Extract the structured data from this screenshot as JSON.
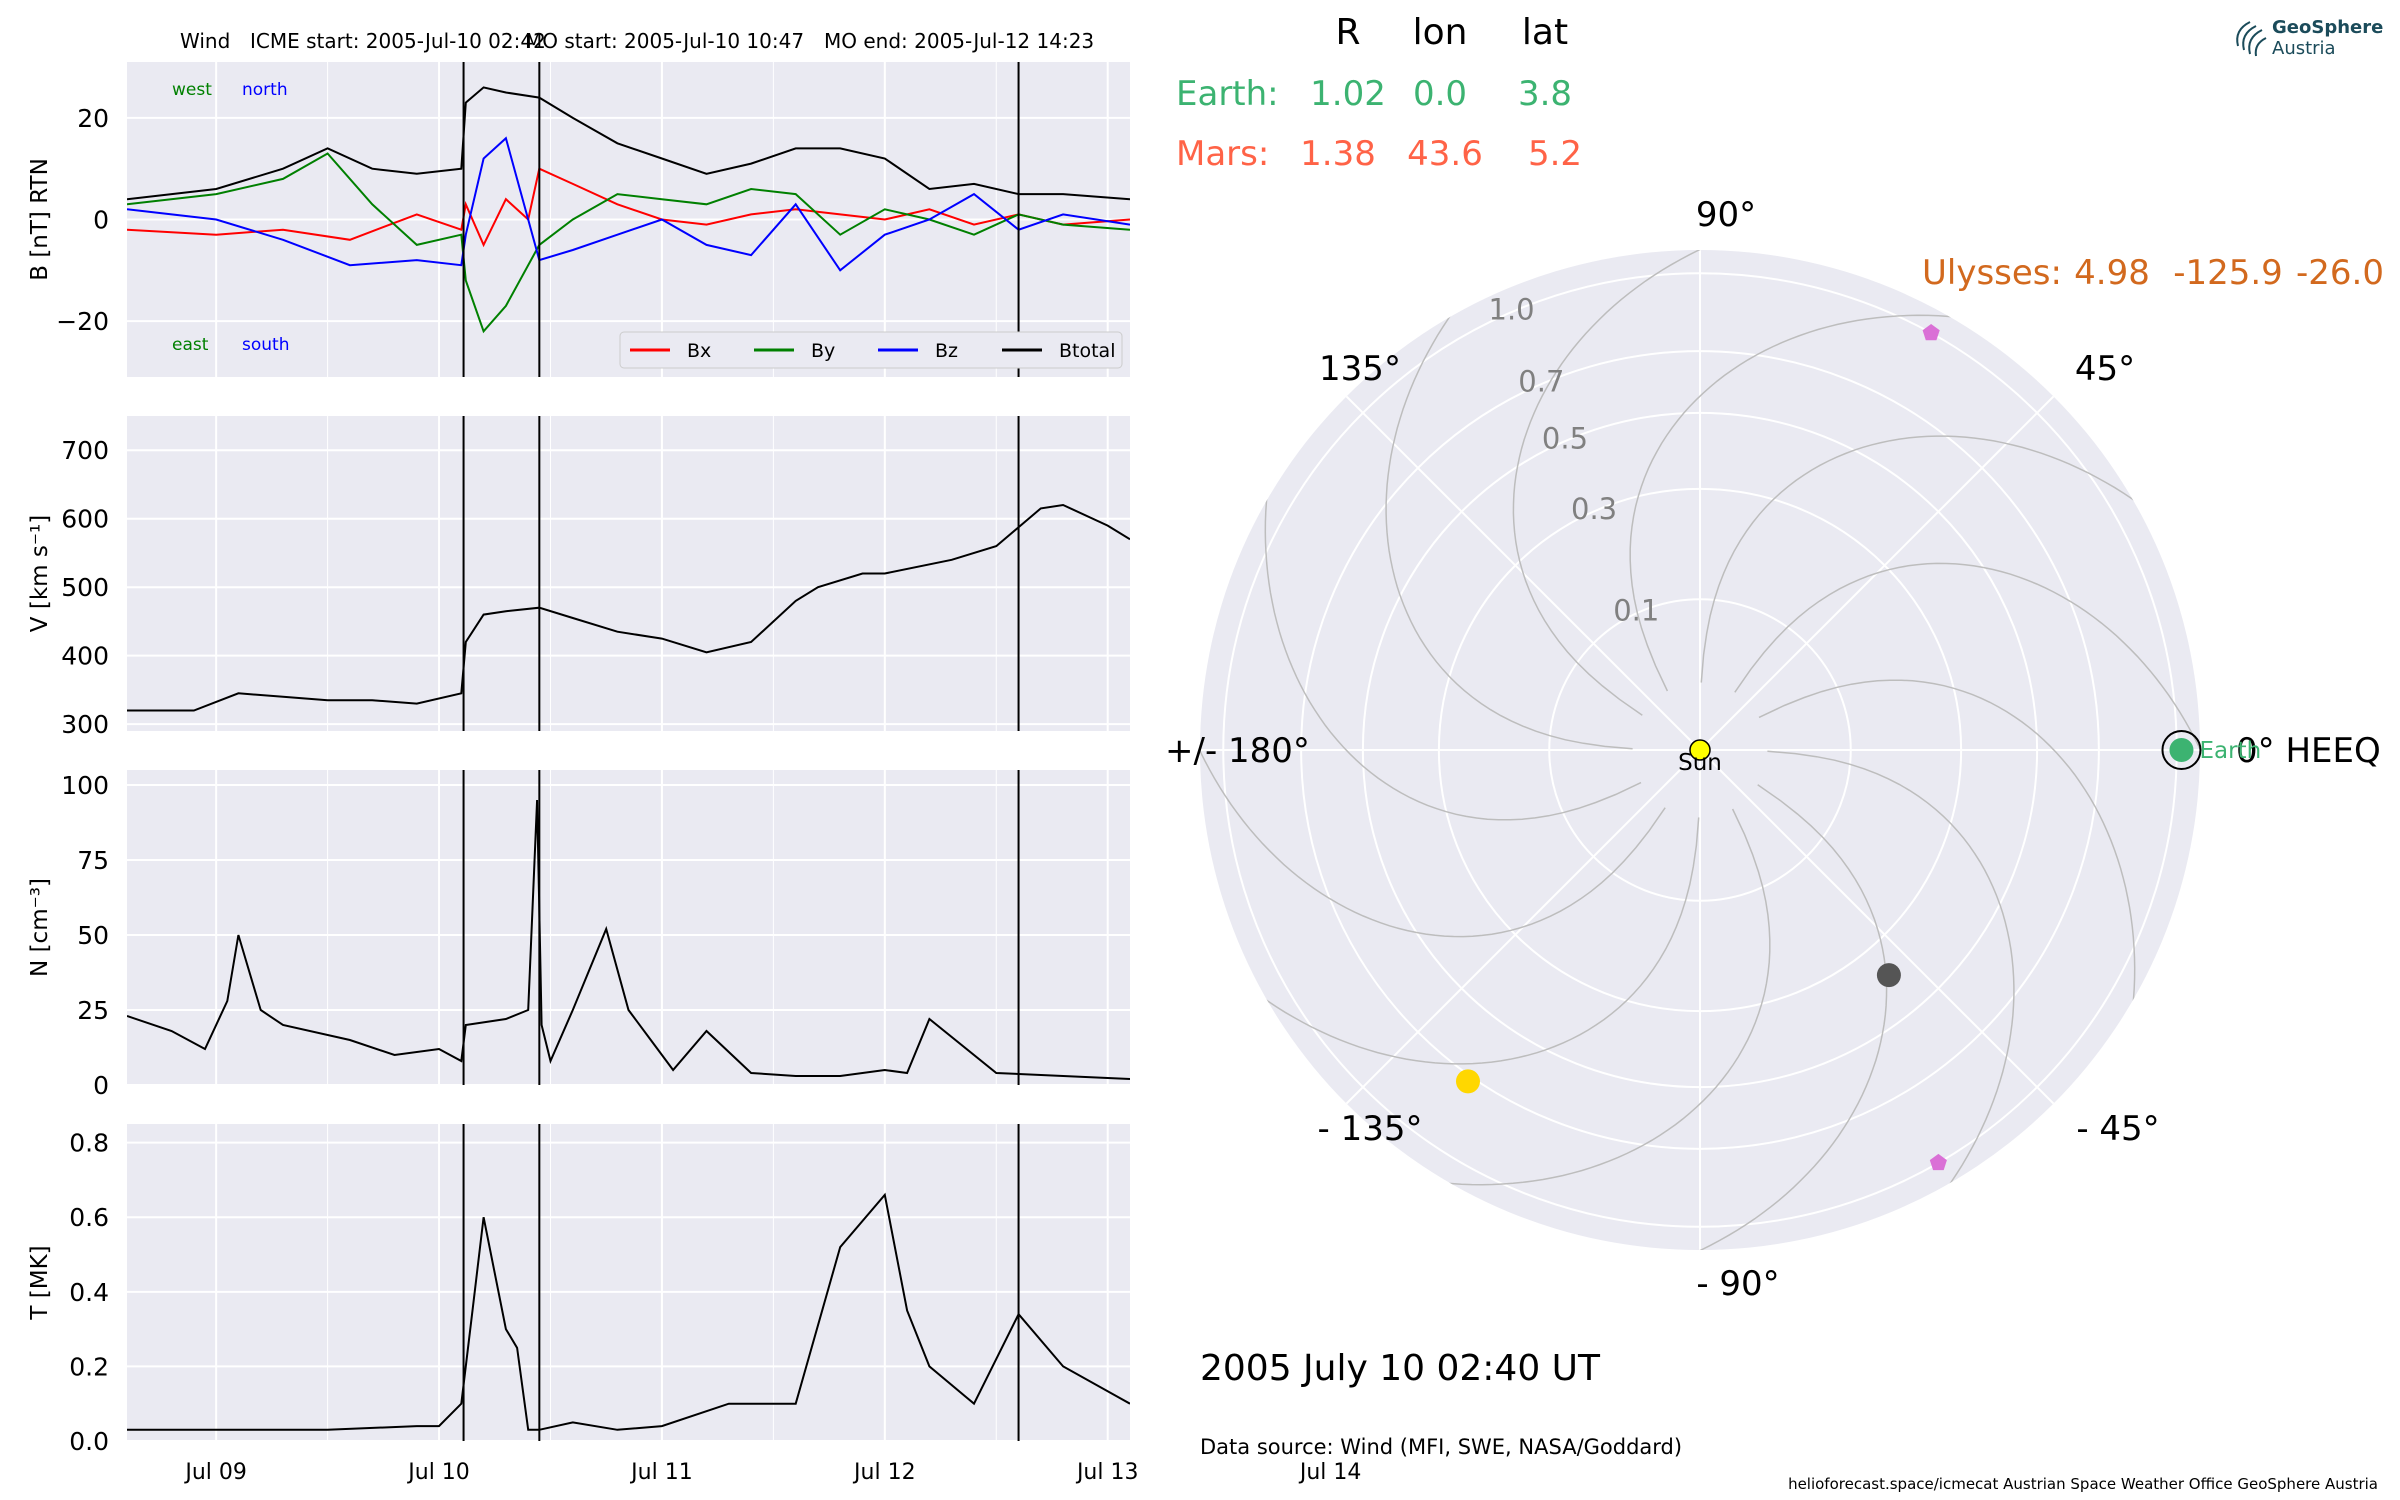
{
  "header": {
    "spacecraft": "Wind",
    "icme_start": "ICME start: 2005-Jul-10 02:42",
    "mo_start": "MO start: 2005-Jul-10 10:47",
    "mo_end": "MO end: 2005-Jul-12 14:23"
  },
  "brand": {
    "line1": "GeoSphere",
    "line2": "Austria",
    "icon": "geosphere-logo-icon"
  },
  "position_table": {
    "headers": [
      "R",
      "lon",
      "lat"
    ],
    "rows": [
      {
        "label": "Earth:",
        "values": [
          "1.02",
          "0.0",
          "3.8"
        ],
        "color": "#3cb371"
      },
      {
        "label": "Mars:",
        "values": [
          "1.38",
          "43.6",
          "5.2"
        ],
        "color": "#ff6347"
      },
      {
        "label": "Ulysses:",
        "values": [
          "4.98",
          "-125.9",
          "-26.0"
        ],
        "color": "#d2691e"
      }
    ]
  },
  "timestamp": "2005 July 10  02:40 UT",
  "data_source": "Data source: Wind (MFI, SWE, NASA/Goddard)",
  "footer": "helioforecast.space/icmecat   Austrian Space Weather Office   GeoSphere Austria",
  "chart_data": [
    {
      "type": "line",
      "panel": "magnetic-field",
      "ylabel": "B [nT] RTN",
      "ylim": [
        -31,
        31
      ],
      "yticks": [
        -20,
        0,
        20
      ],
      "ytick_labels": [
        "−20",
        "0",
        "20"
      ],
      "x_days": "days since 2005-07-09 00:00 UT",
      "annotations": {
        "top_left": [
          "west",
          "north"
        ],
        "bottom_left": [
          "east",
          "south"
        ]
      },
      "legend": {
        "placement": "lower-right",
        "entries": [
          "Bx",
          "By",
          "Bz",
          "Btotal"
        ]
      },
      "series": [
        {
          "name": "Bx",
          "color": "#ff0000",
          "x": [
            -0.4,
            0,
            0.3,
            0.6,
            0.9,
            1.1,
            1.12,
            1.2,
            1.3,
            1.4,
            1.45,
            1.6,
            1.8,
            2.0,
            2.2,
            2.4,
            2.6,
            2.8,
            3.0,
            3.2,
            3.4,
            3.6,
            3.8,
            4.1
          ],
          "y": [
            -2,
            -3,
            -2,
            -4,
            1,
            -2,
            3,
            -5,
            4,
            0,
            10,
            7,
            3,
            0,
            -1,
            1,
            2,
            1,
            0,
            2,
            -1,
            1,
            -1,
            0
          ]
        },
        {
          "name": "By",
          "color": "#008000",
          "x": [
            -0.4,
            0,
            0.3,
            0.5,
            0.7,
            0.9,
            1.1,
            1.12,
            1.2,
            1.3,
            1.45,
            1.6,
            1.8,
            2.0,
            2.2,
            2.4,
            2.6,
            2.8,
            3.0,
            3.2,
            3.4,
            3.6,
            3.8,
            4.1
          ],
          "y": [
            3,
            5,
            8,
            13,
            3,
            -5,
            -3,
            -12,
            -22,
            -17,
            -5,
            0,
            5,
            4,
            3,
            6,
            5,
            -3,
            2,
            0,
            -3,
            1,
            -1,
            -2
          ]
        },
        {
          "name": "Bz",
          "color": "#0000ff",
          "x": [
            -0.4,
            0,
            0.3,
            0.6,
            0.9,
            1.1,
            1.12,
            1.2,
            1.3,
            1.4,
            1.45,
            1.6,
            1.8,
            2.0,
            2.2,
            2.4,
            2.6,
            2.8,
            3.0,
            3.2,
            3.4,
            3.6,
            3.8,
            4.1
          ],
          "y": [
            2,
            0,
            -4,
            -9,
            -8,
            -9,
            -3,
            12,
            16,
            0,
            -8,
            -6,
            -3,
            0,
            -5,
            -7,
            3,
            -10,
            -3,
            0,
            5,
            -2,
            1,
            -1
          ]
        },
        {
          "name": "Btotal",
          "color": "#000000",
          "x": [
            -0.4,
            0,
            0.3,
            0.5,
            0.7,
            0.9,
            1.1,
            1.12,
            1.2,
            1.3,
            1.45,
            1.6,
            1.8,
            2.0,
            2.2,
            2.4,
            2.6,
            2.8,
            3.0,
            3.2,
            3.4,
            3.6,
            3.8,
            4.1
          ],
          "y": [
            4,
            6,
            10,
            14,
            10,
            9,
            10,
            23,
            26,
            25,
            24,
            20,
            15,
            12,
            9,
            11,
            14,
            14,
            12,
            6,
            7,
            5,
            5,
            4
          ]
        }
      ]
    },
    {
      "type": "line",
      "panel": "speed",
      "ylabel": "V [km s⁻¹]",
      "ylim": [
        290,
        750
      ],
      "yticks": [
        300,
        400,
        500,
        600,
        700
      ],
      "x_days": "days since 2005-07-09 00:00 UT",
      "series": [
        {
          "name": "V",
          "color": "#000000",
          "x": [
            -0.4,
            -0.1,
            0.1,
            0.3,
            0.5,
            0.7,
            0.9,
            1.1,
            1.12,
            1.2,
            1.3,
            1.45,
            1.6,
            1.8,
            2.0,
            2.2,
            2.4,
            2.6,
            2.7,
            2.9,
            3.0,
            3.3,
            3.5,
            3.7,
            3.8,
            4.0,
            4.1
          ],
          "y": [
            320,
            320,
            345,
            340,
            335,
            335,
            330,
            345,
            420,
            460,
            465,
            470,
            455,
            435,
            425,
            405,
            420,
            480,
            500,
            520,
            520,
            540,
            560,
            615,
            620,
            590,
            570
          ]
        }
      ]
    },
    {
      "type": "line",
      "panel": "density",
      "ylabel": "N [cm⁻³]",
      "ylim": [
        0,
        105
      ],
      "yticks": [
        0,
        25,
        50,
        75,
        100
      ],
      "x_days": "days since 2005-07-09 00:00 UT",
      "series": [
        {
          "name": "N",
          "color": "#000000",
          "x": [
            -0.4,
            -0.2,
            -0.05,
            0.05,
            0.1,
            0.2,
            0.3,
            0.6,
            0.8,
            1.0,
            1.1,
            1.12,
            1.3,
            1.4,
            1.44,
            1.46,
            1.5,
            1.6,
            1.75,
            1.85,
            1.95,
            2.05,
            2.2,
            2.4,
            2.6,
            2.8,
            3.0,
            3.1,
            3.2,
            3.5,
            3.8,
            4.1
          ],
          "y": [
            23,
            18,
            12,
            28,
            50,
            25,
            20,
            15,
            10,
            12,
            8,
            20,
            22,
            25,
            95,
            20,
            8,
            25,
            52,
            25,
            15,
            5,
            18,
            4,
            3,
            3,
            5,
            4,
            22,
            4,
            3,
            2
          ]
        }
      ]
    },
    {
      "type": "line",
      "panel": "temperature",
      "ylabel": "T [MK]",
      "ylim": [
        0,
        0.85
      ],
      "yticks": [
        0.0,
        0.2,
        0.4,
        0.6,
        0.8
      ],
      "ytick_labels": [
        "0.0",
        "0.2",
        "0.4",
        "0.6",
        "0.8"
      ],
      "x_days": "days since 2005-07-09 00:00 UT",
      "xticks": [
        0,
        1,
        2,
        3,
        4,
        5
      ],
      "xtick_labels": [
        "Jul 09",
        "Jul 10",
        "Jul 11",
        "Jul 12",
        "Jul 13",
        "Jul 14"
      ],
      "series": [
        {
          "name": "T",
          "color": "#000000",
          "x": [
            -0.4,
            0,
            0.5,
            0.9,
            1.0,
            1.1,
            1.15,
            1.2,
            1.3,
            1.35,
            1.4,
            1.45,
            1.6,
            1.8,
            2.0,
            2.3,
            2.6,
            2.8,
            3.0,
            3.1,
            3.2,
            3.4,
            3.6,
            3.8,
            4.1
          ],
          "y": [
            0.03,
            0.03,
            0.03,
            0.04,
            0.04,
            0.1,
            0.35,
            0.6,
            0.3,
            0.25,
            0.03,
            0.03,
            0.05,
            0.03,
            0.04,
            0.1,
            0.1,
            0.52,
            0.66,
            0.35,
            0.2,
            0.1,
            0.34,
            0.2,
            0.1
          ]
        }
      ]
    },
    {
      "type": "scatter",
      "panel": "polar-position-plot",
      "projection": "polar",
      "r_ticks": [
        0.1,
        0.3,
        0.5,
        0.7,
        1.0
      ],
      "r_tick_labels": [
        "0.1",
        "0.3",
        "0.5",
        "0.7",
        "1.0"
      ],
      "angle_labels": [
        "0° HEEQ",
        "45°",
        "90°",
        "135°",
        "+/- 180°",
        "- 135°",
        "- 90°",
        "- 45°"
      ],
      "bodies": [
        {
          "name": "Sun",
          "r": 0.0,
          "lon": 0.0,
          "color": "#ffff00"
        },
        {
          "name": "Earth",
          "r": 1.02,
          "lon": 0.0,
          "color": "#3cb371"
        },
        {
          "name": "Mercury",
          "r": 0.38,
          "lon": -50,
          "color": "#555555"
        },
        {
          "name": "Venus",
          "r": 0.72,
          "lon": -125,
          "color": "#ffd700"
        },
        {
          "name": "Spacecraft A",
          "r": 1.0,
          "lon": 61,
          "color": "#da70d6"
        },
        {
          "name": "Spacecraft B",
          "r": 1.0,
          "lon": -60,
          "color": "#da70d6"
        }
      ]
    }
  ]
}
